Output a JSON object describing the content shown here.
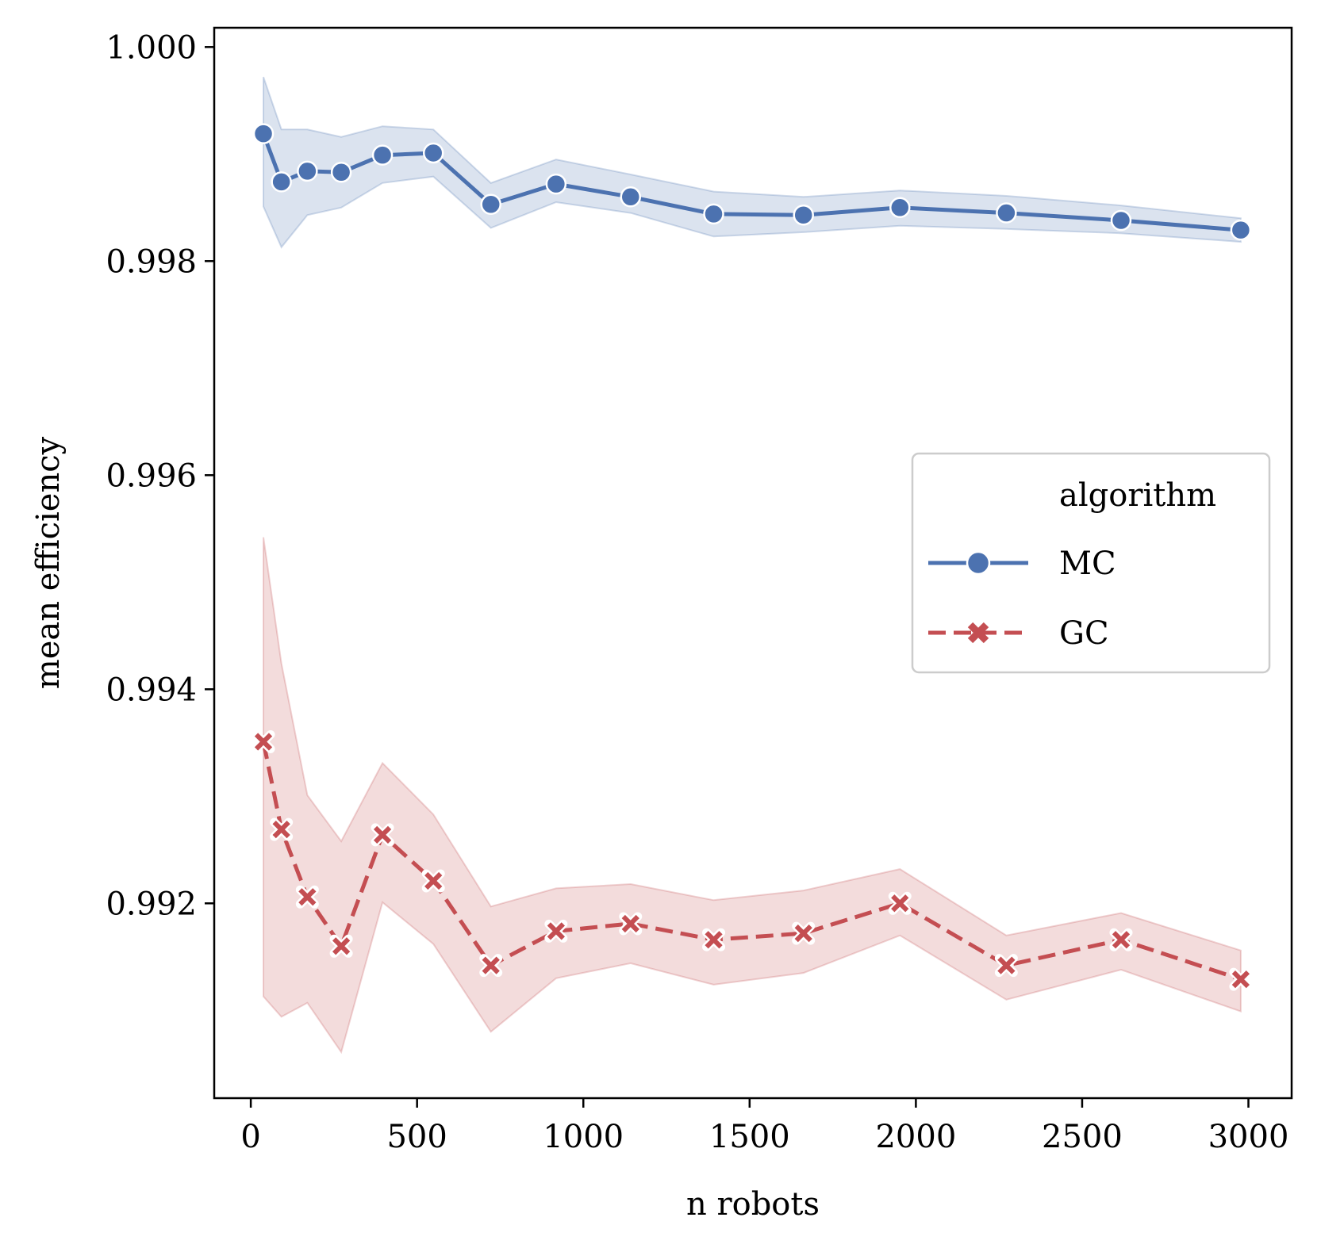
{
  "chart_data": {
    "type": "line",
    "title": "",
    "xlabel": "n robots",
    "ylabel": "mean efficiency",
    "xlim": [
      -110,
      3130
    ],
    "ylim": [
      0.99018,
      1.00018
    ],
    "xticks": [
      0,
      500,
      1000,
      1500,
      2000,
      2500,
      3000
    ],
    "xtick_labels": [
      "0",
      "500",
      "1000",
      "1500",
      "2000",
      "2500",
      "3000"
    ],
    "yticks": [
      0.992,
      0.994,
      0.996,
      0.998,
      1.0
    ],
    "ytick_labels": [
      "0.992",
      "0.994",
      "0.996",
      "0.998",
      "1.000"
    ],
    "grid": false,
    "legend": {
      "title": "algorithm",
      "position": "center-right"
    },
    "series": [
      {
        "name": "MC",
        "color": "#4c72b0",
        "linestyle": "solid",
        "marker": "circle",
        "x": [
          38,
          92,
          170,
          272,
          396,
          549,
          722,
          918,
          1142,
          1392,
          1662,
          1952,
          2272,
          2617,
          2977
        ],
        "y": [
          0.99919,
          0.99874,
          0.99884,
          0.99883,
          0.99899,
          0.99901,
          0.99853,
          0.99872,
          0.9986,
          0.99844,
          0.99843,
          0.9985,
          0.99845,
          0.99838,
          0.99829
        ],
        "ci_low": [
          0.99851,
          0.99813,
          0.99843,
          0.9985,
          0.99873,
          0.99879,
          0.99831,
          0.99855,
          0.99845,
          0.99823,
          0.99827,
          0.99833,
          0.9983,
          0.99826,
          0.99818
        ],
        "ci_high": [
          0.99972,
          0.99923,
          0.99923,
          0.99916,
          0.99926,
          0.99923,
          0.99873,
          0.99895,
          0.99881,
          0.99865,
          0.9986,
          0.99866,
          0.99861,
          0.99852,
          0.9984
        ]
      },
      {
        "name": "GC",
        "color": "#c44e52",
        "linestyle": "dashed",
        "marker": "x",
        "x": [
          38,
          92,
          170,
          272,
          396,
          549,
          722,
          918,
          1142,
          1392,
          1662,
          1952,
          2272,
          2617,
          2977
        ],
        "y": [
          0.99351,
          0.99269,
          0.99206,
          0.9916,
          0.99264,
          0.99221,
          0.99142,
          0.99174,
          0.99181,
          0.99166,
          0.99172,
          0.992,
          0.99142,
          0.99166,
          0.99129
        ],
        "ci_low": [
          0.99113,
          0.99094,
          0.99107,
          0.99061,
          0.99201,
          0.99162,
          0.9908,
          0.9913,
          0.99144,
          0.99124,
          0.99135,
          0.9917,
          0.9911,
          0.99138,
          0.99099
        ],
        "ci_high": [
          0.99542,
          0.99424,
          0.99301,
          0.99258,
          0.99331,
          0.99283,
          0.99197,
          0.99214,
          0.99218,
          0.99203,
          0.99212,
          0.99232,
          0.9917,
          0.99191,
          0.99156
        ]
      }
    ]
  }
}
